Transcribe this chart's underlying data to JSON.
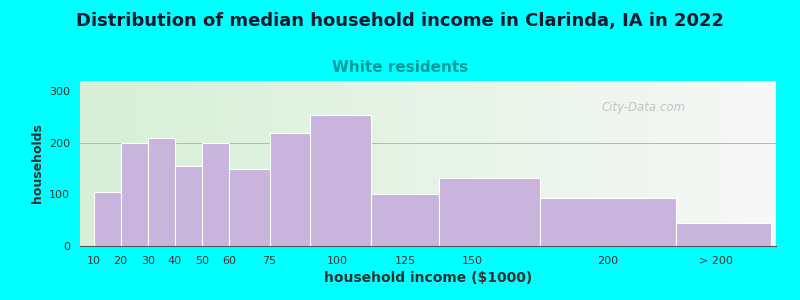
{
  "title": "Distribution of median household income in Clarinda, IA in 2022",
  "subtitle": "White residents",
  "xlabel": "household income ($1000)",
  "ylabel": "households",
  "title_fontsize": 13,
  "subtitle_fontsize": 11,
  "subtitle_color": "#009999",
  "bar_color": "#c8b4dc",
  "background_outer": "#00ffff",
  "watermark": "City-Data.com",
  "values": [
    105,
    200,
    210,
    155,
    200,
    150,
    220,
    255,
    100,
    132,
    93,
    45
  ],
  "ylim": [
    0,
    320
  ],
  "yticks": [
    0,
    100,
    200,
    300
  ],
  "bar_left_edges": [
    10,
    20,
    30,
    40,
    50,
    60,
    75,
    90,
    112.5,
    137.5,
    175,
    225
  ],
  "bar_right_edges": [
    20,
    30,
    40,
    50,
    60,
    75,
    90,
    112.5,
    137.5,
    175,
    225,
    260
  ],
  "xtick_positions": [
    10,
    20,
    30,
    40,
    50,
    60,
    75,
    100,
    125,
    150,
    200,
    240
  ],
  "xtick_labels": [
    "10",
    "20",
    "30",
    "40",
    "50",
    "60",
    "75",
    "100",
    "125",
    "150",
    "200",
    "> 200"
  ],
  "xlim": [
    5,
    262
  ]
}
